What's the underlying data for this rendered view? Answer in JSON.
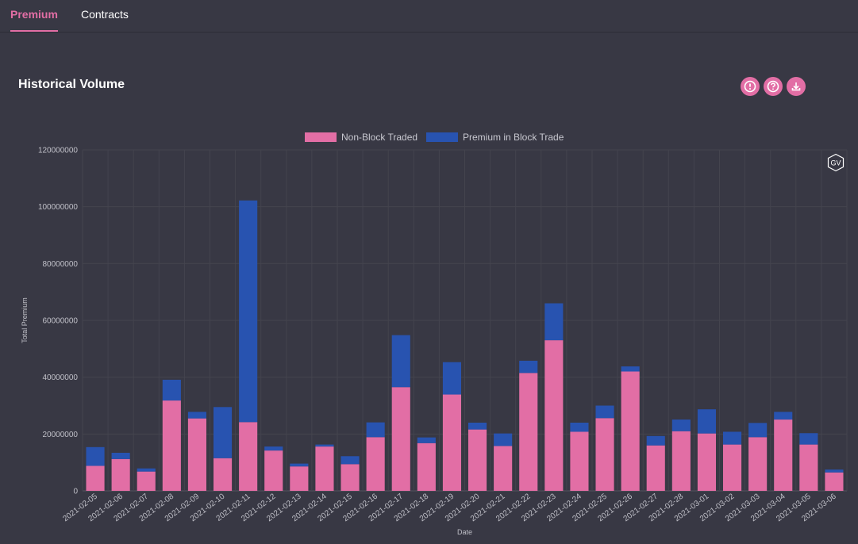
{
  "tabs": [
    {
      "label": "Premium",
      "active": true
    },
    {
      "label": "Contracts",
      "active": false
    }
  ],
  "header": {
    "title": "Historical Volume"
  },
  "toolbar": {
    "icons": [
      "alert-icon",
      "help-icon",
      "download-icon"
    ],
    "watermark": "GV"
  },
  "colors": {
    "accent": "#e26ea5",
    "non_block": "#e26ea5",
    "block": "#2853b0",
    "background": "#383844"
  },
  "chart_data": {
    "type": "bar",
    "stacked": true,
    "xlabel": "Date",
    "ylabel": "Total Premium",
    "ylim": [
      0,
      120000000
    ],
    "yticks": [
      0,
      20000000,
      40000000,
      60000000,
      80000000,
      100000000,
      120000000
    ],
    "grid": true,
    "legend_position": "top-center",
    "categories": [
      "2021-02-05",
      "2021-02-06",
      "2021-02-07",
      "2021-02-08",
      "2021-02-09",
      "2021-02-10",
      "2021-02-11",
      "2021-02-12",
      "2021-02-13",
      "2021-02-14",
      "2021-02-15",
      "2021-02-16",
      "2021-02-17",
      "2021-02-18",
      "2021-02-19",
      "2021-02-20",
      "2021-02-21",
      "2021-02-22",
      "2021-02-23",
      "2021-02-24",
      "2021-02-25",
      "2021-02-26",
      "2021-02-27",
      "2021-02-28",
      "2021-03-01",
      "2021-03-02",
      "2021-03-03",
      "2021-03-04",
      "2021-03-05",
      "2021-03-06"
    ],
    "series": [
      {
        "name": "Non-Block Traded",
        "color": "#e26ea5",
        "values": [
          8800000,
          11200000,
          6800000,
          31800000,
          25500000,
          11500000,
          24200000,
          14200000,
          8600000,
          15600000,
          9400000,
          18900000,
          36500000,
          16800000,
          33900000,
          21600000,
          15800000,
          41500000,
          53000000,
          20800000,
          25600000,
          42000000,
          16000000,
          21000000,
          20200000,
          16300000,
          18900000,
          25100000,
          16300000,
          6500000
        ]
      },
      {
        "name": "Premium in Block Trade",
        "color": "#2853b0",
        "values": [
          6600000,
          2200000,
          1100000,
          7300000,
          2300000,
          18000000,
          78000000,
          1400000,
          1000000,
          700000,
          2800000,
          5200000,
          18300000,
          2000000,
          11400000,
          2400000,
          4400000,
          4300000,
          13000000,
          3200000,
          4400000,
          1800000,
          3300000,
          4100000,
          8500000,
          4500000,
          5000000,
          2700000,
          4000000,
          1000000
        ]
      }
    ]
  }
}
